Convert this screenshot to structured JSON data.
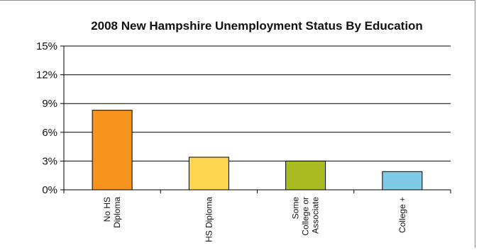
{
  "chart_data": {
    "type": "bar",
    "title": "2008 New Hampshire Unemployment Status By Education",
    "categories": [
      [
        "No HS",
        "Diploma"
      ],
      [
        "HS Diploma"
      ],
      [
        "Some",
        "College or",
        "Associate"
      ],
      [
        "College +"
      ]
    ],
    "values": [
      8.3,
      3.4,
      3.0,
      1.9
    ],
    "colors": [
      "#F7941D",
      "#FFD44F",
      "#A8BC22",
      "#7FCBE6"
    ],
    "ylim": [
      0,
      15
    ],
    "yticks": [
      0,
      3,
      6,
      9,
      12,
      15
    ],
    "ytick_labels": [
      "0%",
      "3%",
      "6%",
      "9%",
      "12%",
      "15%"
    ],
    "grid": true,
    "xlabel": "",
    "ylabel": ""
  }
}
